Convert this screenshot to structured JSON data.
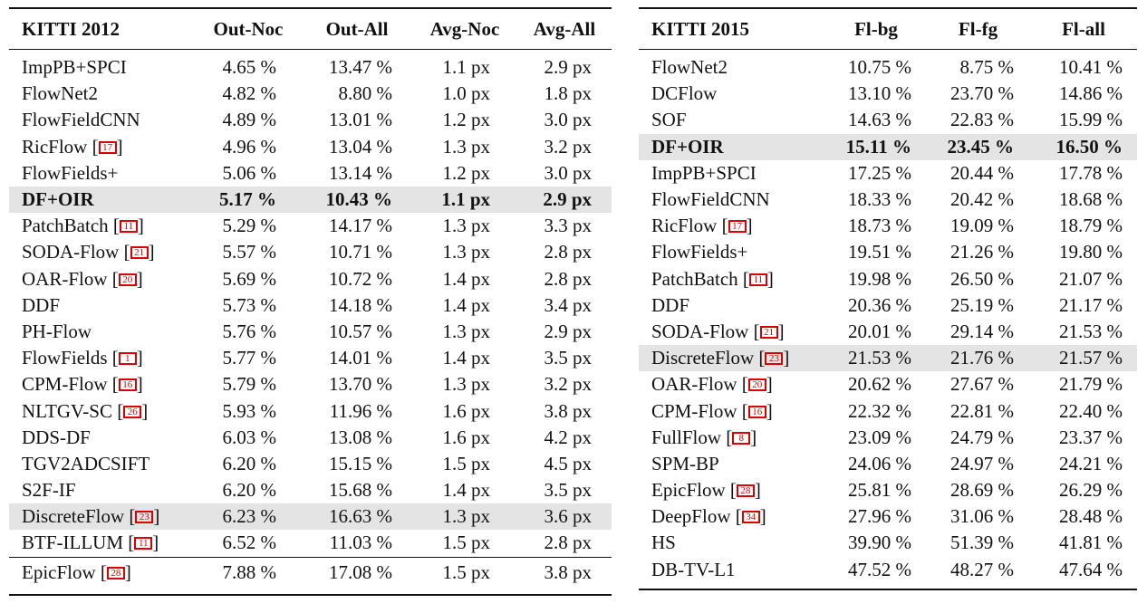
{
  "kitti2012": {
    "headers": [
      "KITTI 2012",
      "Out-Noc",
      "Out-All",
      "Avg-Noc",
      "Avg-All"
    ],
    "rows": [
      {
        "name": "ImpPB+SPCI",
        "cite": "",
        "v": [
          "4.65 %",
          "13.47 %",
          "1.1 px",
          "2.9 px"
        ],
        "hl": false,
        "bold": false
      },
      {
        "name": "FlowNet2",
        "cite": "",
        "v": [
          "4.82 %",
          "8.80 %",
          "1.0 px",
          "1.8 px"
        ],
        "hl": false,
        "bold": false
      },
      {
        "name": "FlowFieldCNN",
        "cite": "",
        "v": [
          "4.89 %",
          "13.01 %",
          "1.2 px",
          "3.0 px"
        ],
        "hl": false,
        "bold": false
      },
      {
        "name": "RicFlow",
        "cite": "17",
        "v": [
          "4.96 %",
          "13.04 %",
          "1.3 px",
          "3.2 px"
        ],
        "hl": false,
        "bold": false
      },
      {
        "name": "FlowFields+",
        "cite": "",
        "v": [
          "5.06 %",
          "13.14 %",
          "1.2 px",
          "3.0 px"
        ],
        "hl": false,
        "bold": false
      },
      {
        "name": "DF+OIR",
        "cite": "",
        "v": [
          "5.17 %",
          "10.43 %",
          "1.1 px",
          "2.9 px"
        ],
        "hl": true,
        "bold": true
      },
      {
        "name": "PatchBatch",
        "cite": "11",
        "v": [
          "5.29 %",
          "14.17 %",
          "1.3 px",
          "3.3 px"
        ],
        "hl": false,
        "bold": false
      },
      {
        "name": "SODA-Flow",
        "cite": "21",
        "v": [
          "5.57 %",
          "10.71 %",
          "1.3 px",
          "2.8 px"
        ],
        "hl": false,
        "bold": false
      },
      {
        "name": "OAR-Flow",
        "cite": "20",
        "v": [
          "5.69 %",
          "10.72 %",
          "1.4 px",
          "2.8 px"
        ],
        "hl": false,
        "bold": false
      },
      {
        "name": "DDF",
        "cite": "",
        "v": [
          "5.73 %",
          "14.18 %",
          "1.4 px",
          "3.4 px"
        ],
        "hl": false,
        "bold": false
      },
      {
        "name": "PH-Flow",
        "cite": "",
        "v": [
          "5.76 %",
          "10.57 %",
          "1.3 px",
          "2.9 px"
        ],
        "hl": false,
        "bold": false
      },
      {
        "name": "FlowFields",
        "cite": "1",
        "v": [
          "5.77 %",
          "14.01 %",
          "1.4 px",
          "3.5 px"
        ],
        "hl": false,
        "bold": false
      },
      {
        "name": "CPM-Flow",
        "cite": "16",
        "v": [
          "5.79 %",
          "13.70 %",
          "1.3 px",
          "3.2 px"
        ],
        "hl": false,
        "bold": false
      },
      {
        "name": "NLTGV-SC",
        "cite": "26",
        "v": [
          "5.93 %",
          "11.96 %",
          "1.6 px",
          "3.8 px"
        ],
        "hl": false,
        "bold": false
      },
      {
        "name": "DDS-DF",
        "cite": "",
        "v": [
          "6.03 %",
          "13.08 %",
          "1.6 px",
          "4.2 px"
        ],
        "hl": false,
        "bold": false
      },
      {
        "name": "TGV2ADCSIFT",
        "cite": "",
        "v": [
          "6.20 %",
          "15.15 %",
          "1.5 px",
          "4.5 px"
        ],
        "hl": false,
        "bold": false
      },
      {
        "name": "S2F-IF",
        "cite": "",
        "v": [
          "6.20 %",
          "15.68 %",
          "1.4 px",
          "3.5 px"
        ],
        "hl": false,
        "bold": false
      },
      {
        "name": "DiscreteFlow",
        "cite": "23",
        "v": [
          "6.23 %",
          "16.63 %",
          "1.3 px",
          "3.6 px"
        ],
        "hl": true,
        "bold": false
      },
      {
        "name": "BTF-ILLUM",
        "cite": "11",
        "v": [
          "6.52 %",
          "11.03 %",
          "1.5 px",
          "2.8 px"
        ],
        "hl": false,
        "bold": false
      },
      {
        "name": "EpicFlow",
        "cite": "28",
        "v": [
          "7.88 %",
          "17.08 %",
          "1.5 px",
          "3.8 px"
        ],
        "hl": false,
        "bold": false,
        "sep": true
      }
    ]
  },
  "kitti2015": {
    "headers": [
      "KITTI 2015",
      "Fl-bg",
      "Fl-fg",
      "Fl-all"
    ],
    "rows": [
      {
        "name": "FlowNet2",
        "cite": "",
        "v": [
          "10.75 %",
          "8.75 %",
          "10.41 %"
        ],
        "hl": false,
        "bold": false
      },
      {
        "name": "DCFlow",
        "cite": "",
        "v": [
          "13.10 %",
          "23.70 %",
          "14.86 %"
        ],
        "hl": false,
        "bold": false
      },
      {
        "name": "SOF",
        "cite": "",
        "v": [
          "14.63 %",
          "22.83 %",
          "15.99 %"
        ],
        "hl": false,
        "bold": false
      },
      {
        "name": "DF+OIR",
        "cite": "",
        "v": [
          "15.11 %",
          "23.45 %",
          "16.50 %"
        ],
        "hl": true,
        "bold": true
      },
      {
        "name": "ImpPB+SPCI",
        "cite": "",
        "v": [
          "17.25 %",
          "20.44 %",
          "17.78 %"
        ],
        "hl": false,
        "bold": false
      },
      {
        "name": "FlowFieldCNN",
        "cite": "",
        "v": [
          "18.33 %",
          "20.42 %",
          "18.68 %"
        ],
        "hl": false,
        "bold": false
      },
      {
        "name": "RicFlow",
        "cite": "17",
        "v": [
          "18.73 %",
          "19.09 %",
          "18.79 %"
        ],
        "hl": false,
        "bold": false
      },
      {
        "name": "FlowFields+",
        "cite": "",
        "v": [
          "19.51 %",
          "21.26 %",
          "19.80 %"
        ],
        "hl": false,
        "bold": false
      },
      {
        "name": "PatchBatch",
        "cite": "11",
        "v": [
          "19.98 %",
          "26.50 %",
          "21.07 %"
        ],
        "hl": false,
        "bold": false
      },
      {
        "name": "DDF",
        "cite": "",
        "v": [
          "20.36 %",
          "25.19 %",
          "21.17 %"
        ],
        "hl": false,
        "bold": false
      },
      {
        "name": "SODA-Flow",
        "cite": "21",
        "v": [
          "20.01 %",
          "29.14 %",
          "21.53 %"
        ],
        "hl": false,
        "bold": false
      },
      {
        "name": "DiscreteFlow",
        "cite": "23",
        "v": [
          "21.53 %",
          "21.76 %",
          "21.57 %"
        ],
        "hl": true,
        "bold": false
      },
      {
        "name": "OAR-Flow",
        "cite": "20",
        "v": [
          "20.62 %",
          "27.67 %",
          "21.79 %"
        ],
        "hl": false,
        "bold": false
      },
      {
        "name": "CPM-Flow",
        "cite": "16",
        "v": [
          "22.32 %",
          "22.81 %",
          "22.40 %"
        ],
        "hl": false,
        "bold": false
      },
      {
        "name": "FullFlow",
        "cite": "8",
        "v": [
          "23.09 %",
          "24.79 %",
          "23.37 %"
        ],
        "hl": false,
        "bold": false
      },
      {
        "name": "SPM-BP",
        "cite": "",
        "v": [
          "24.06 %",
          "24.97 %",
          "24.21 %"
        ],
        "hl": false,
        "bold": false
      },
      {
        "name": "EpicFlow",
        "cite": "28",
        "v": [
          "25.81 %",
          "28.69 %",
          "26.29 %"
        ],
        "hl": false,
        "bold": false
      },
      {
        "name": "DeepFlow",
        "cite": "34",
        "v": [
          "27.96 %",
          "31.06 %",
          "28.48 %"
        ],
        "hl": false,
        "bold": false
      },
      {
        "name": "HS",
        "cite": "",
        "v": [
          "39.90 %",
          "51.39 %",
          "41.81 %"
        ],
        "hl": false,
        "bold": false
      },
      {
        "name": "DB-TV-L1",
        "cite": "",
        "v": [
          "47.52 %",
          "48.27 %",
          "47.64 %"
        ],
        "hl": false,
        "bold": false
      }
    ]
  }
}
